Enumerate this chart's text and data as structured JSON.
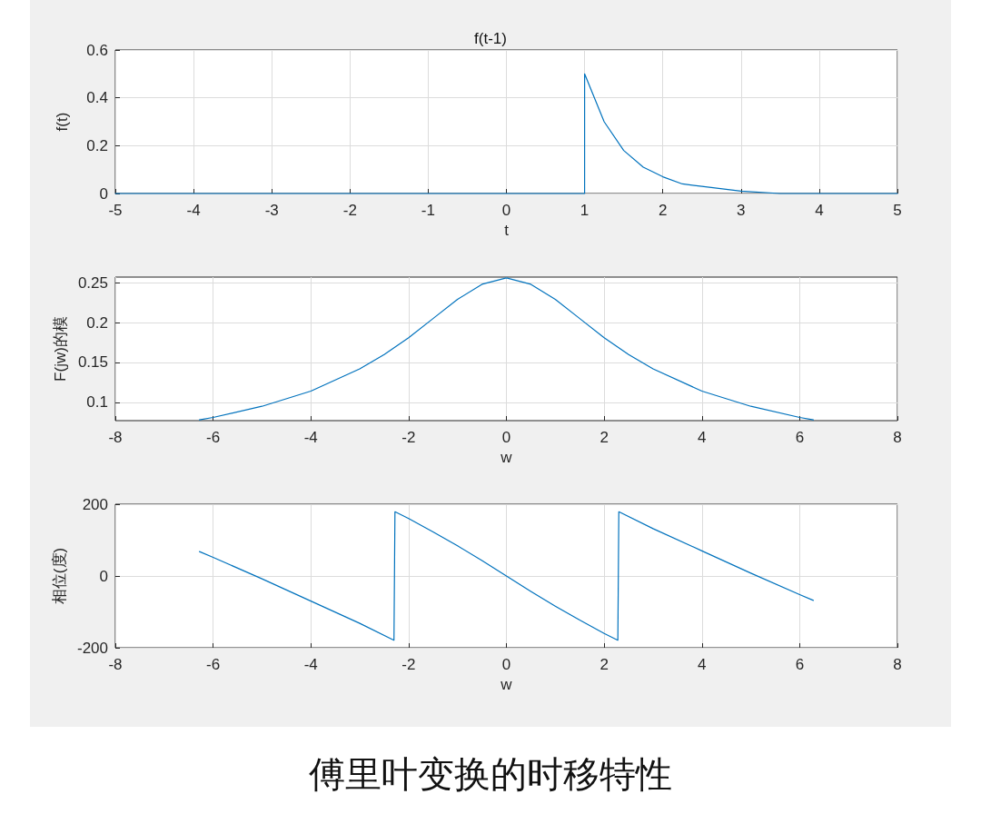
{
  "chart_data": [
    {
      "type": "line",
      "title": "f(t-1)",
      "xlabel": "t",
      "ylabel": "f(t)",
      "xlim": [
        -5,
        5
      ],
      "xticks": [
        -5,
        -4,
        -3,
        -2,
        -1,
        0,
        1,
        2,
        3,
        4,
        5
      ],
      "ylim": [
        0,
        0.6
      ],
      "yticks": [
        0,
        0.2,
        0.4,
        0.6
      ],
      "grid": true,
      "marker": "none",
      "line_style": "solid",
      "series": [
        {
          "color": "#0072bd",
          "x": [
            -5,
            1,
            1,
            1.25,
            1.5,
            1.75,
            2,
            2.25,
            2.5,
            3,
            3.5,
            4,
            4.5,
            5
          ],
          "values": [
            0,
            0,
            0.5,
            0.3,
            0.18,
            0.11,
            0.07,
            0.04,
            0.03,
            0.01,
            0,
            0,
            0,
            0
          ]
        }
      ]
    },
    {
      "type": "line",
      "xlabel": "w",
      "ylabel": "F(jw)的模",
      "xlim": [
        -8,
        8
      ],
      "xticks": [
        -8,
        -6,
        -4,
        -2,
        0,
        2,
        4,
        6,
        8
      ],
      "ylim": [
        0.077,
        0.257
      ],
      "yticks": [
        0.1,
        0.15,
        0.2,
        0.25
      ],
      "grid": true,
      "marker": "none",
      "line_style": "solid",
      "series": [
        {
          "color": "#0072bd",
          "x": [
            -6.28,
            -6,
            -5,
            -4,
            -3,
            -2.5,
            -2,
            -1.5,
            -1,
            -0.5,
            0,
            0.5,
            1,
            1.5,
            2,
            2.5,
            3,
            4,
            5,
            6,
            6.28
          ],
          "values": [
            0.078,
            0.081,
            0.095,
            0.114,
            0.142,
            0.16,
            0.181,
            0.205,
            0.229,
            0.248,
            0.256,
            0.248,
            0.229,
            0.205,
            0.181,
            0.16,
            0.142,
            0.114,
            0.095,
            0.081,
            0.078
          ]
        }
      ]
    },
    {
      "type": "line",
      "xlabel": "w",
      "ylabel": "相位(度)",
      "xlim": [
        -8,
        8
      ],
      "xticks": [
        -8,
        -6,
        -4,
        -2,
        0,
        2,
        4,
        6,
        8
      ],
      "ylim": [
        -200,
        200
      ],
      "yticks": [
        -200,
        0,
        200
      ],
      "grid": true,
      "marker": "none",
      "line_style": "solid",
      "annotations": [
        "傅里叶变换的时移特性"
      ],
      "series": [
        {
          "color": "#0072bd",
          "x": [
            -6.28,
            -6,
            -5,
            -4,
            -3,
            -2.3,
            -2.28,
            -2,
            -1.5,
            -1,
            -0.5,
            0,
            0.5,
            1,
            1.5,
            2,
            2.28,
            2.3,
            3,
            4,
            5,
            6,
            6.28
          ],
          "values": [
            68,
            52,
            -8,
            -70,
            -132,
            -179,
            179,
            160,
            123,
            84,
            43,
            0,
            -43,
            -84,
            -123,
            -160,
            -179,
            179,
            132,
            70,
            8,
            -52,
            -68
          ]
        }
      ]
    }
  ]
}
